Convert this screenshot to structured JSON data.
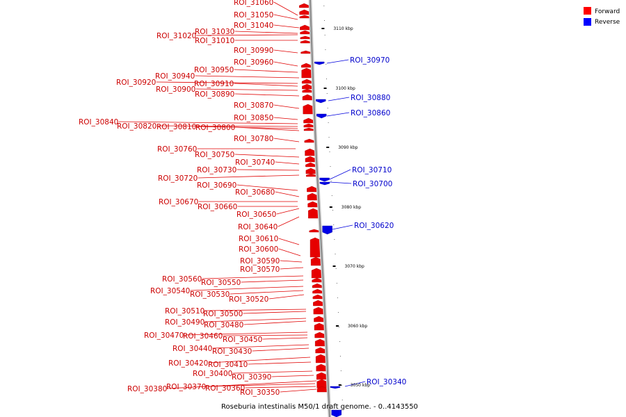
{
  "caption": "Roseburia intestinalis M50/1 draft genome. - 0..4143550",
  "legend": [
    {
      "label": "Forward",
      "color": "#ff0000"
    },
    {
      "label": "Reverse",
      "color": "#0000ff"
    }
  ],
  "ticks": [
    "3110 kbp",
    "3100 kbp",
    "3090 kbp",
    "3080 kbp",
    "3070 kbp",
    "3060 kbp",
    "3050 kbp"
  ],
  "forward_labels": [
    "ROI_31060",
    "ROI_31050",
    "ROI_31040",
    "ROI_31030",
    "ROI_31020",
    "ROI_31010",
    "ROI_30990",
    "ROI_30960",
    "ROI_30950",
    "ROI_30940",
    "ROI_30920",
    "ROI_30910",
    "ROI_30900",
    "ROI_30890",
    "ROI_30870",
    "ROI_30850",
    "ROI_30840",
    "ROI_30820",
    "ROI_30810",
    "ROI_30800",
    "ROI_30780",
    "ROI_30760",
    "ROI_30750",
    "ROI_30740",
    "ROI_30730",
    "ROI_30720",
    "ROI_30690",
    "ROI_30680",
    "ROI_30670",
    "ROI_30660",
    "ROI_30650",
    "ROI_30640",
    "ROI_30610",
    "ROI_30600",
    "ROI_30590",
    "ROI_30570",
    "ROI_30560",
    "ROI_30550",
    "ROI_30540",
    "ROI_30530",
    "ROI_30520",
    "ROI_30510",
    "ROI_30500",
    "ROI_30490",
    "ROI_30480",
    "ROI_30470",
    "ROI_30460",
    "ROI_30450",
    "ROI_30440",
    "ROI_30430",
    "ROI_30420",
    "ROI_30410",
    "ROI_30400",
    "ROI_30390",
    "ROI_30380",
    "ROI_30370",
    "ROI_30360",
    "ROI_30350"
  ],
  "reverse_labels": [
    "ROI_30970",
    "ROI_30880",
    "ROI_30860",
    "ROI_30710",
    "ROI_30700",
    "ROI_30620",
    "ROI_30340"
  ]
}
